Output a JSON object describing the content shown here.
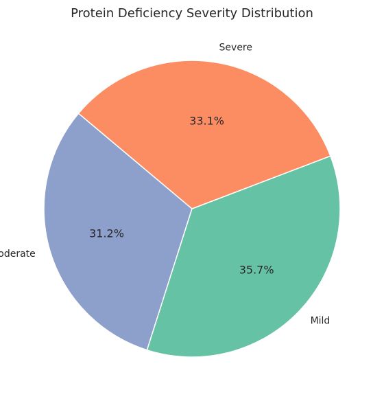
{
  "chart_data": {
    "type": "pie",
    "title": "Protein Deficiency Severity Distribution",
    "start_angle_deg": 140,
    "direction": "counterclockwise",
    "slices": [
      {
        "label": "Moderate",
        "value": 31.2,
        "pct_text": "31.2%",
        "color": "#8da0cb"
      },
      {
        "label": "Mild",
        "value": 35.7,
        "pct_text": "35.7%",
        "color": "#66c2a5"
      },
      {
        "label": "Severe",
        "value": 33.1,
        "pct_text": "33.1%",
        "color": "#fc8d62"
      }
    ]
  }
}
